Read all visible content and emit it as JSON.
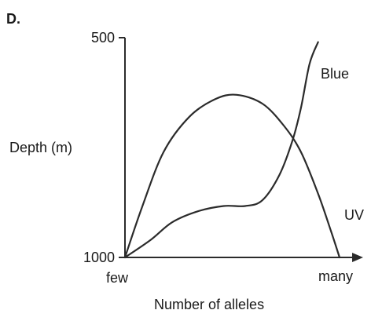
{
  "chart_data": {
    "type": "line",
    "panel_label": "D.",
    "xlabel": "Number of alleles",
    "ylabel": "Depth (m)",
    "x_tick_labels": [
      "few",
      "many"
    ],
    "x_range": [
      0,
      1
    ],
    "y_tick_labels": [
      "500",
      "1000"
    ],
    "y_range": [
      500,
      1000
    ],
    "y_inverted": true,
    "grid": false,
    "legend": "none",
    "series": [
      {
        "name": "Blue",
        "x": [
          0.0,
          0.12,
          0.22,
          0.34,
          0.46,
          0.56,
          0.64,
          0.72,
          0.78,
          0.82,
          0.86,
          0.9
        ],
        "y": [
          1000,
          960,
          920,
          895,
          883,
          883,
          870,
          812,
          735,
          660,
          560,
          510
        ]
      },
      {
        "name": "UV",
        "x": [
          0.0,
          0.08,
          0.18,
          0.3,
          0.42,
          0.52,
          0.64,
          0.74,
          0.82,
          0.9,
          0.96,
          1.0
        ],
        "y": [
          1000,
          885,
          760,
          680,
          640,
          630,
          650,
          700,
          760,
          855,
          940,
          1000
        ]
      }
    ],
    "colors": {
      "line": "#2b2b2b",
      "axis": "#2b2b2b",
      "text": "#1a1a1a"
    }
  }
}
